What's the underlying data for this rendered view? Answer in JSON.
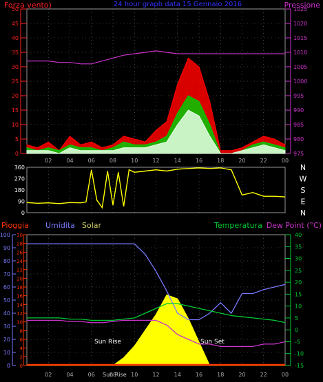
{
  "chart_data": [
    {
      "type": "line",
      "title": "24 hour graph data 15 Gennaio 2016",
      "left_label": "Forza vento)",
      "right_label": "Pressione",
      "x_ticks": [
        "02",
        "04",
        "06",
        "08",
        "10",
        "12",
        "14",
        "16",
        "18",
        "20",
        "22",
        "00"
      ],
      "y_left_ticks": [
        "0",
        "5",
        "10",
        "15",
        "20",
        "25",
        "30",
        "35",
        "40",
        "45",
        "50"
      ],
      "y_left_range": [
        0,
        50
      ],
      "y_right_ticks": [
        "975",
        "980",
        "985",
        "990",
        "995",
        "1000",
        "1005",
        "1010",
        "1015",
        "1020",
        "1025"
      ],
      "y_right_range": [
        975,
        1025
      ],
      "grid": true,
      "colors": {
        "wind_gust": "#ff0000",
        "wind_speed": "#00cc00",
        "wind_avg": "#e6ffe6",
        "pressure": "#cc33cc",
        "left_axis": "#ff0000",
        "right_axis": "#cc33cc"
      },
      "series": [
        {
          "color": "#cc33cc",
          "axis": "right",
          "x": [
            0,
            1,
            2,
            3,
            4,
            5,
            6,
            7,
            8,
            9,
            10,
            11,
            12,
            13,
            14,
            15,
            16,
            17,
            18,
            19,
            20,
            21,
            22,
            23,
            24
          ],
          "values": [
            1007,
            1007,
            1007,
            1006.5,
            1006.5,
            1006,
            1006,
            1007,
            1008,
            1009,
            1009.5,
            1010,
            1010.5,
            1010,
            1009.5,
            1009.5,
            1009.5,
            1009.5,
            1009.5,
            1009.5,
            1009.5,
            1009.5,
            1009.5,
            1009.5,
            1009.5
          ]
        },
        {
          "color": "#ff0000",
          "axis": "left",
          "x": [
            0,
            1,
            2,
            3,
            4,
            5,
            6,
            7,
            8,
            9,
            10,
            11,
            12,
            13,
            14,
            15,
            16,
            17,
            18,
            19,
            20,
            21,
            22,
            23,
            24
          ],
          "values": [
            3,
            2,
            4,
            1,
            6,
            3,
            4,
            2,
            3,
            6,
            5,
            4,
            8,
            11,
            24,
            33,
            30,
            18,
            1,
            1,
            2,
            4,
            6,
            5,
            3
          ]
        },
        {
          "color": "#00cc00",
          "axis": "left",
          "x": [
            0,
            1,
            2,
            3,
            4,
            5,
            6,
            7,
            8,
            9,
            10,
            11,
            12,
            13,
            14,
            15,
            16,
            17,
            18,
            19,
            20,
            21,
            22,
            23,
            24
          ],
          "values": [
            2,
            1,
            2,
            1,
            3,
            2,
            2,
            1,
            2,
            4,
            3,
            3,
            4,
            6,
            14,
            20,
            18,
            10,
            0,
            0,
            1,
            3,
            4,
            3,
            2
          ]
        },
        {
          "color": "#e6ffe6",
          "axis": "left",
          "x": [
            0,
            1,
            2,
            3,
            4,
            5,
            6,
            7,
            8,
            9,
            10,
            11,
            12,
            13,
            14,
            15,
            16,
            17,
            18,
            19,
            20,
            21,
            22,
            23,
            24
          ],
          "values": [
            1,
            1,
            1,
            0,
            2,
            1,
            1,
            1,
            1,
            2,
            2,
            2,
            3,
            4,
            10,
            15,
            13,
            6,
            0,
            0,
            1,
            2,
            3,
            2,
            1
          ]
        }
      ]
    },
    {
      "type": "line",
      "y_ticks": [
        "0",
        "90",
        "180",
        "270",
        "360"
      ],
      "y_range": [
        0,
        360
      ],
      "compass_labels": [
        "N",
        "W",
        "S",
        "E",
        "N"
      ],
      "grid": true,
      "colors": {
        "direction": "#ffff00"
      },
      "series": [
        {
          "color": "#ffff00",
          "x": [
            0,
            1,
            2,
            3,
            4,
            5,
            5.5,
            6,
            6.5,
            7,
            7.5,
            8,
            8.5,
            9,
            9.5,
            10,
            11,
            12,
            13,
            14,
            15,
            16,
            17,
            18,
            19,
            20,
            21,
            22,
            23,
            24
          ],
          "values": [
            80,
            75,
            78,
            72,
            80,
            78,
            85,
            340,
            100,
            40,
            330,
            60,
            320,
            50,
            340,
            320,
            330,
            340,
            330,
            345,
            350,
            355,
            350,
            355,
            340,
            140,
            160,
            130,
            130,
            125
          ]
        }
      ]
    },
    {
      "type": "line",
      "labels": {
        "rain": "Pioggia",
        "humidity": "Umidita",
        "solar": "Solar",
        "temperature": "Temperatura",
        "dewpoint": "Dew Point (°C)"
      },
      "annotations": [
        "Sun Rise",
        "Sun Set",
        "Sun Rise"
      ],
      "x_ticks": [
        "02",
        "04",
        "06",
        "08",
        "10",
        "12",
        "14",
        "16",
        "18",
        "20",
        "22",
        "00"
      ],
      "humidity_ticks": [
        "0",
        "10",
        "20",
        "30",
        "40",
        "50",
        "60",
        "70",
        "80",
        "90",
        "100"
      ],
      "humidity_range": [
        0,
        100
      ],
      "rain_ticks": [
        "0",
        "2",
        "4",
        "6",
        "8",
        "10",
        "12",
        "14",
        "16",
        "18",
        "20",
        "22",
        "24",
        "26",
        "28",
        "30"
      ],
      "rain_range": [
        0,
        30
      ],
      "temp_ticks": [
        "-15",
        "-10",
        "-5",
        "0",
        "5",
        "10",
        "15",
        "20",
        "25",
        "30",
        "35",
        "40"
      ],
      "temp_range": [
        -15,
        40
      ],
      "grid": true,
      "colors": {
        "rain": "#ff3300",
        "humidity": "#7a7aff",
        "solar": "#ffff00",
        "temperature": "#00cc33",
        "dewpoint": "#cc33cc"
      },
      "series": [
        {
          "color": "#7a7aff",
          "x": [
            0,
            1,
            2,
            3,
            4,
            5,
            6,
            7,
            8,
            9,
            10,
            11,
            12,
            13,
            14,
            15,
            16,
            17,
            18,
            19,
            20,
            21,
            22,
            23,
            24
          ],
          "values": [
            93,
            93,
            93,
            93,
            93,
            93,
            93,
            93,
            93,
            93,
            93,
            85,
            72,
            57,
            40,
            35,
            35,
            40,
            48,
            40,
            55,
            55,
            58,
            60,
            62
          ]
        },
        {
          "color": "#00cc33",
          "x": [
            0,
            1,
            2,
            3,
            4,
            5,
            6,
            7,
            8,
            9,
            10,
            11,
            12,
            13,
            14,
            15,
            16,
            17,
            18,
            19,
            20,
            21,
            22,
            23,
            24
          ],
          "values": [
            5,
            5,
            5,
            5,
            4.5,
            4.5,
            4,
            4,
            4,
            4.5,
            5,
            7,
            9,
            11,
            11,
            10,
            9,
            8,
            7,
            6,
            5.5,
            5,
            4.5,
            4,
            3
          ]
        },
        {
          "color": "#cc33cc",
          "x": [
            0,
            1,
            2,
            3,
            4,
            5,
            6,
            7,
            8,
            9,
            10,
            11,
            12,
            13,
            14,
            15,
            16,
            17,
            18,
            19,
            20,
            21,
            22,
            23,
            24
          ],
          "values": [
            4,
            4,
            4,
            4,
            3.5,
            3.5,
            3,
            3,
            3.5,
            4,
            4,
            4,
            4,
            2,
            -2,
            -4,
            -6,
            -6,
            -7,
            -7,
            -7,
            -7,
            -6,
            -6,
            -5
          ]
        },
        {
          "color": "#ffff00",
          "x": [
            0,
            7,
            8,
            9,
            10,
            11,
            12,
            13,
            14,
            15,
            16,
            17,
            24
          ],
          "values": [
            0,
            0,
            0,
            2,
            5,
            9,
            13,
            18,
            17,
            12,
            6,
            0,
            0
          ]
        },
        {
          "color": "#ff3300",
          "x": [
            0,
            24
          ],
          "values": [
            0,
            0
          ]
        }
      ]
    }
  ]
}
